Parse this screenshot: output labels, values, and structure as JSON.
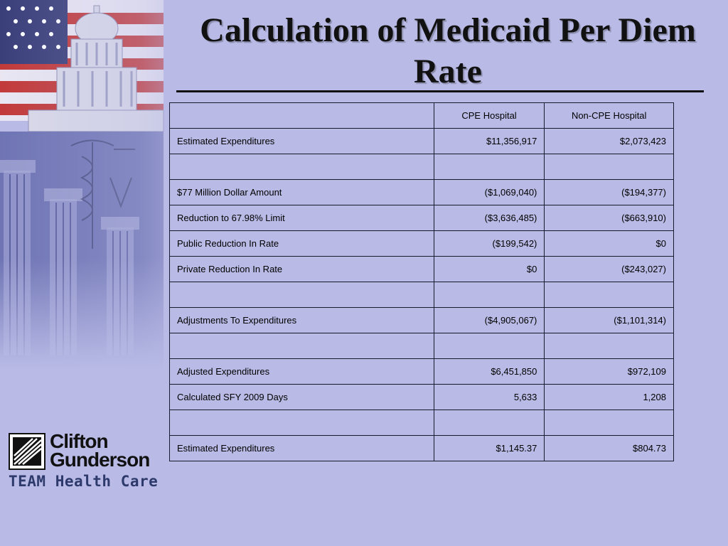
{
  "slide": {
    "title": "Calculation of Medicaid Per Diem Rate"
  },
  "table": {
    "headers": [
      "",
      "CPE Hospital",
      "Non-CPE Hospital"
    ],
    "rows": [
      [
        "Estimated Expenditures",
        "$11,356,917",
        "$2,073,423"
      ],
      [
        "",
        "",
        ""
      ],
      [
        "$77 Million Dollar Amount",
        "($1,069,040)",
        "($194,377)"
      ],
      [
        "Reduction to 67.98% Limit",
        "($3,636,485)",
        "($663,910)"
      ],
      [
        "Public Reduction In Rate",
        "($199,542)",
        "$0"
      ],
      [
        "Private Reduction In Rate",
        "$0",
        "($243,027)"
      ],
      [
        "",
        "",
        ""
      ],
      [
        "Adjustments To Expenditures",
        "($4,905,067)",
        "($1,101,314)"
      ],
      [
        "",
        "",
        ""
      ],
      [
        "Adjusted Expenditures",
        "$6,451,850",
        "$972,109"
      ],
      [
        "Calculated SFY 2009 Days",
        "5,633",
        "1,208"
      ],
      [
        "",
        "",
        ""
      ],
      [
        "Estimated Expenditures",
        "$1,145.37",
        "$804.73"
      ]
    ]
  },
  "logo": {
    "line1": "Clifton",
    "line2": "Gunderson",
    "tagline": "TEAM Health Care"
  },
  "colors": {
    "background": "#b9bbe6",
    "text": "#111111",
    "table_border": "#1a1a2e",
    "tagline": "#2d3a6b"
  },
  "icons": [
    "capitol-flag-illustration",
    "clifton-gunderson-logo-mark"
  ]
}
